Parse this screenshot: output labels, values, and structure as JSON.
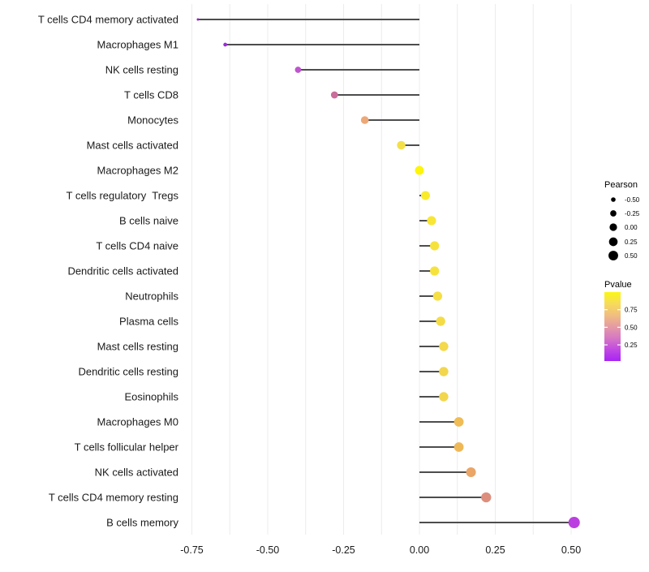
{
  "figure": {
    "background": "#FFFFFF",
    "panel_background": "#FFFFFF",
    "gridline_color": "#ECECEC",
    "stem_color": "#4D4D4D",
    "axis_text_color": "#1A1A1A",
    "legend_text_color": "#000000"
  },
  "chart_data": {
    "type": "scatter",
    "subtype": "lollipop",
    "orientation": "horizontal",
    "title": "",
    "xlabel": "",
    "ylabel": "",
    "grid": "vertical gridlines every 0.125, no horizontal gridlines, no axis lines",
    "legend_position": "right",
    "xlim": [
      -0.78,
      0.59
    ],
    "x_ticks": [
      -0.75,
      -0.5,
      -0.25,
      0,
      0.25,
      0.5
    ],
    "x_tick_labels": [
      "-0.75",
      "-0.50",
      "-0.25",
      "0.00",
      "0.25",
      "0.50"
    ],
    "categories": [
      "T cells CD4 memory activated",
      "Macrophages M1",
      "NK cells resting",
      "T cells CD8",
      "Monocytes",
      "Mast cells activated",
      "Macrophages M2",
      "T cells regulatory  Tregs",
      "B cells naive",
      "T cells CD4 naive",
      "Dendritic cells activated",
      "Neutrophils",
      "Plasma cells",
      "Mast cells resting",
      "Dendritic cells resting",
      "Eosinophils",
      "Macrophages M0",
      "T cells follicular helper",
      "NK cells activated",
      "T cells CD4 memory resting",
      "B cells memory"
    ],
    "series": [
      {
        "name": "Pearson",
        "values": [
          -0.73,
          -0.64,
          -0.4,
          -0.28,
          -0.18,
          -0.06,
          0.0,
          0.02,
          0.04,
          0.05,
          0.05,
          0.06,
          0.07,
          0.08,
          0.08,
          0.08,
          0.13,
          0.13,
          0.17,
          0.22,
          0.51
        ]
      }
    ],
    "point_colors": [
      "#9129C4",
      "#9C2BD9",
      "#BE55CE",
      "#CA6D9C",
      "#EDA878",
      "#F3DF4A",
      "#FDF50A",
      "#F9EB2B",
      "#F7E636",
      "#F6E23D",
      "#F6E23D",
      "#F5DF43",
      "#F4DC47",
      "#F3D94B",
      "#F2D64E",
      "#F2D64E",
      "#EFBC55",
      "#EEB857",
      "#EAA567",
      "#DE8E7D",
      "#BB3FE0"
    ]
  },
  "legends": {
    "size_legend": {
      "title": "Pearson",
      "entry_labels": [
        "-0.50",
        "-0.25",
        "0.00",
        "0.25",
        "0.50"
      ],
      "entry_values": [
        -0.5,
        -0.25,
        0,
        0.25,
        0.5
      ],
      "dot_color": "#000000"
    },
    "color_legend": {
      "title": "Pvalue",
      "tick_labels": [
        "0.75",
        "0.50",
        "0.25"
      ],
      "tick_values": [
        0.75,
        0.5,
        0.25
      ],
      "bar_range": [
        0.02,
        1.0
      ],
      "gradient_top_to_bottom": [
        "#FBF713",
        "#F6DC5A",
        "#F1BE80",
        "#E59BA4",
        "#D678C4",
        "#C149E2",
        "#A824F4"
      ]
    }
  }
}
